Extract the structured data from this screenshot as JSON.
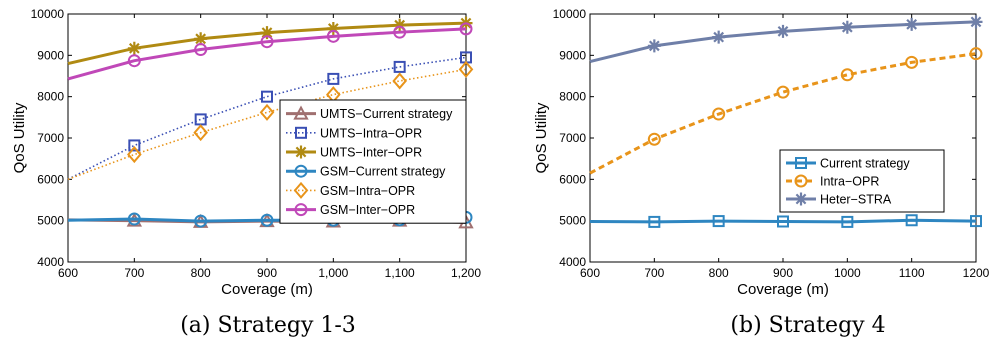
{
  "chart_data": [
    {
      "type": "line",
      "caption": "(a) Strategy 1-3",
      "xlabel": "Coverage (m)",
      "ylabel": "QoS Utility",
      "xlim": [
        600,
        1200
      ],
      "ylim": [
        4000,
        10000
      ],
      "xticks": [
        600,
        700,
        800,
        900,
        1000,
        1100,
        1200
      ],
      "xtick_labels": [
        "600",
        "700",
        "800",
        "900",
        "1,000",
        "1,100",
        "1,200"
      ],
      "yticks": [
        4000,
        5000,
        6000,
        7000,
        8000,
        9000,
        10000
      ],
      "ytick_labels": [
        "4000",
        "5000",
        "6000",
        "7000",
        "8000",
        "9000",
        "10000"
      ],
      "legend_position": "right",
      "series": [
        {
          "name": "UMTS−Current strategy",
          "marker": "triangle",
          "line": "solid",
          "color": "#a07070",
          "x": [
            600,
            700,
            800,
            900,
            1000,
            1100,
            1200
          ],
          "y": [
            5020,
            5000,
            4970,
            4990,
            4980,
            5000,
            4960
          ]
        },
        {
          "name": "UMTS−Intra−OPR",
          "marker": "square",
          "line": "dotted",
          "color": "#3a4fb4",
          "x": [
            600,
            700,
            800,
            900,
            1000,
            1100,
            1200
          ],
          "y": [
            6000,
            6820,
            7450,
            8000,
            8430,
            8720,
            8950
          ]
        },
        {
          "name": "UMTS−Inter−OPR",
          "marker": "star",
          "line": "solid",
          "color": "#b08a12",
          "x": [
            600,
            700,
            800,
            900,
            1000,
            1100,
            1200
          ],
          "y": [
            8800,
            9170,
            9400,
            9550,
            9650,
            9730,
            9780
          ]
        },
        {
          "name": "GSM−Current strategy",
          "marker": "circle",
          "line": "solid",
          "color": "#2e86c1",
          "x": [
            600,
            700,
            800,
            900,
            1000,
            1100,
            1200
          ],
          "y": [
            5010,
            5040,
            4990,
            5010,
            5010,
            5020,
            5080
          ]
        },
        {
          "name": "GSM−Intra−OPR",
          "marker": "diamond",
          "line": "dotted",
          "color": "#e8941a",
          "x": [
            600,
            700,
            800,
            900,
            1000,
            1100,
            1200
          ],
          "y": [
            6000,
            6600,
            7130,
            7620,
            8050,
            8380,
            8660
          ]
        },
        {
          "name": "GSM−Inter−OPR",
          "marker": "circle",
          "line": "solid",
          "color": "#c048b8",
          "x": [
            600,
            700,
            800,
            900,
            1000,
            1100,
            1200
          ],
          "y": [
            8430,
            8870,
            9140,
            9330,
            9460,
            9560,
            9640
          ]
        }
      ]
    },
    {
      "type": "line",
      "caption": "(b) Strategy 4",
      "xlabel": "Coverage (m)",
      "ylabel": "QoS Utility",
      "xlim": [
        600,
        1200
      ],
      "ylim": [
        4000,
        10000
      ],
      "xticks": [
        600,
        700,
        800,
        900,
        1000,
        1100,
        1200
      ],
      "xtick_labels": [
        "600",
        "700",
        "800",
        "900",
        "1000",
        "1100",
        "1200"
      ],
      "yticks": [
        4000,
        5000,
        6000,
        7000,
        8000,
        9000,
        10000
      ],
      "ytick_labels": [
        "4000",
        "5000",
        "6000",
        "7000",
        "8000",
        "9000",
        "10000"
      ],
      "legend_position": "center-right",
      "series": [
        {
          "name": "Current strategy",
          "marker": "square",
          "line": "solid",
          "color": "#2e86c1",
          "x": [
            600,
            700,
            800,
            900,
            1000,
            1100,
            1200
          ],
          "y": [
            4980,
            4970,
            4990,
            4980,
            4970,
            5010,
            4990
          ]
        },
        {
          "name": "Intra−OPR",
          "marker": "circle",
          "line": "dashed",
          "color": "#e8941a",
          "x": [
            600,
            700,
            800,
            900,
            1000,
            1100,
            1200
          ],
          "y": [
            6150,
            6970,
            7580,
            8110,
            8530,
            8830,
            9040
          ]
        },
        {
          "name": "Heter−STRA",
          "marker": "star",
          "line": "solid",
          "color": "#6f7fa8",
          "x": [
            600,
            700,
            800,
            900,
            1000,
            1100,
            1200
          ],
          "y": [
            8850,
            9230,
            9440,
            9580,
            9680,
            9750,
            9810
          ]
        }
      ]
    }
  ]
}
